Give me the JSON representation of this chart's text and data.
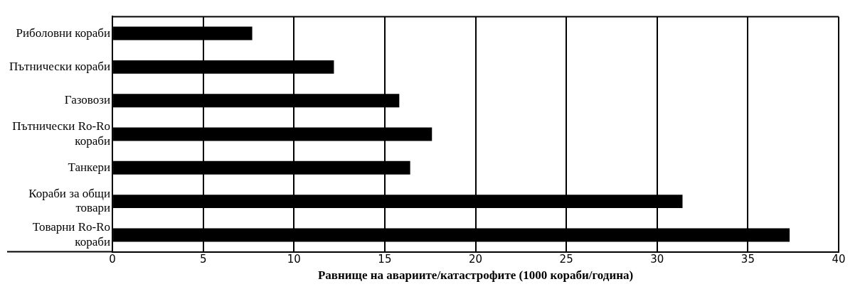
{
  "chart_data": {
    "type": "bar",
    "orientation": "horizontal",
    "xlabel": "Равнище на авариите/катастрофите (1000 кораби/година)",
    "categories": [
      "Риболовни кораби",
      "Пътнически кораби",
      "Газовози",
      "Пътнически Ro-Ro кораби",
      "Танкери",
      "Кораби за общи товари",
      "Товарни Ro-Ro кораби"
    ],
    "values": [
      7.7,
      12.2,
      15.8,
      17.6,
      16.4,
      31.4,
      37.3
    ],
    "color": "#000000",
    "xlim": [
      0,
      40
    ],
    "xticks": [
      0,
      5,
      10,
      15,
      20,
      25,
      30,
      35,
      40
    ],
    "grid": "x",
    "legend": false
  }
}
